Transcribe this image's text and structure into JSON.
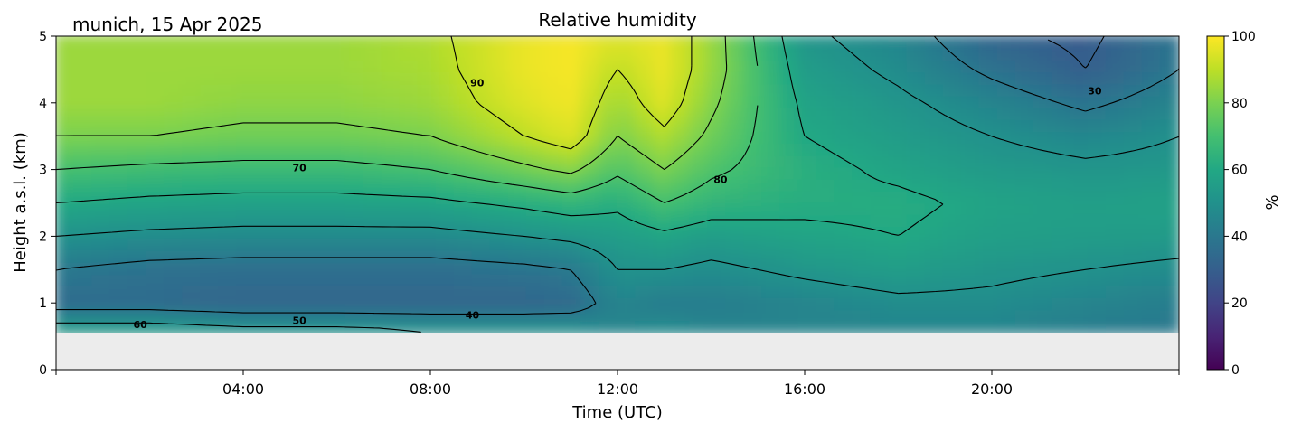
{
  "chart_data": {
    "type": "heatmap",
    "title": "Relative humidity",
    "subtitle": "munich, 15 Apr 2025",
    "xlabel": "Time (UTC)",
    "ylabel": "Height a.s.l. (km)",
    "x_range_hours": [
      0,
      24
    ],
    "xlim": [
      "00:00",
      "24:00"
    ],
    "ylim": [
      0,
      5
    ],
    "x_ticks": [
      "04:00",
      "08:00",
      "12:00",
      "16:00",
      "20:00"
    ],
    "x_tick_hours": [
      4,
      8,
      12,
      16,
      20
    ],
    "y_ticks": [
      "0",
      "1",
      "2",
      "3",
      "4",
      "5"
    ],
    "y_tick_values": [
      0,
      1,
      2,
      3,
      4,
      5
    ],
    "no_data_below_km": 0.55,
    "colorbar": {
      "label": "%",
      "range": [
        0,
        100
      ],
      "ticks": [
        "0",
        "20",
        "40",
        "60",
        "80",
        "100"
      ],
      "tick_values": [
        0,
        20,
        40,
        60,
        80,
        100
      ],
      "colormap": "viridis"
    },
    "contour_levels": [
      30,
      40,
      50,
      60,
      70,
      80,
      90
    ],
    "contour_labels": [
      {
        "text": "60",
        "x": 1.8,
        "y": 0.68
      },
      {
        "text": "50",
        "x": 5.2,
        "y": 0.74
      },
      {
        "text": "40",
        "x": 8.9,
        "y": 0.82
      },
      {
        "text": "70",
        "x": 5.2,
        "y": 3.03
      },
      {
        "text": "80",
        "x": 14.2,
        "y": 2.85
      },
      {
        "text": "90",
        "x": 9.0,
        "y": 4.3
      },
      {
        "text": "30",
        "x": 22.2,
        "y": 4.18
      }
    ],
    "humidity_field_samples": {
      "hours": [
        0,
        2,
        4,
        6,
        8,
        10,
        11,
        12,
        13,
        14,
        16,
        18,
        20,
        22,
        24
      ],
      "profiles_km": [
        0.6,
        1.0,
        1.5,
        2.0,
        2.5,
        3.0,
        3.5,
        4.0,
        4.5,
        5.0
      ],
      "values": [
        [
          55,
          35,
          40,
          50,
          60,
          70,
          80,
          85,
          85,
          85
        ],
        [
          55,
          35,
          37,
          48,
          58,
          68,
          80,
          85,
          85,
          85
        ],
        [
          52,
          33,
          36,
          47,
          57,
          67,
          78,
          83,
          85,
          85
        ],
        [
          52,
          33,
          36,
          47,
          57,
          67,
          78,
          83,
          85,
          85
        ],
        [
          50,
          33,
          36,
          47,
          58,
          70,
          80,
          85,
          87,
          88
        ],
        [
          50,
          33,
          38,
          50,
          62,
          78,
          90,
          95,
          97,
          97
        ],
        [
          50,
          34,
          40,
          52,
          65,
          82,
          95,
          98,
          99,
          99
        ],
        [
          45,
          45,
          50,
          55,
          62,
          72,
          80,
          85,
          90,
          95
        ],
        [
          48,
          42,
          50,
          58,
          70,
          80,
          88,
          95,
          97,
          97
        ],
        [
          45,
          42,
          48,
          55,
          65,
          72,
          78,
          82,
          85,
          85
        ],
        [
          45,
          45,
          52,
          58,
          62,
          63,
          60,
          58,
          55,
          52
        ],
        [
          45,
          48,
          55,
          60,
          62,
          58,
          55,
          52,
          48,
          45
        ],
        [
          45,
          48,
          52,
          56,
          58,
          54,
          50,
          45,
          38,
          32
        ],
        [
          42,
          45,
          50,
          55,
          56,
          52,
          46,
          38,
          30,
          28
        ],
        [
          40,
          42,
          48,
          54,
          57,
          53,
          50,
          45,
          40,
          38
        ]
      ]
    }
  }
}
